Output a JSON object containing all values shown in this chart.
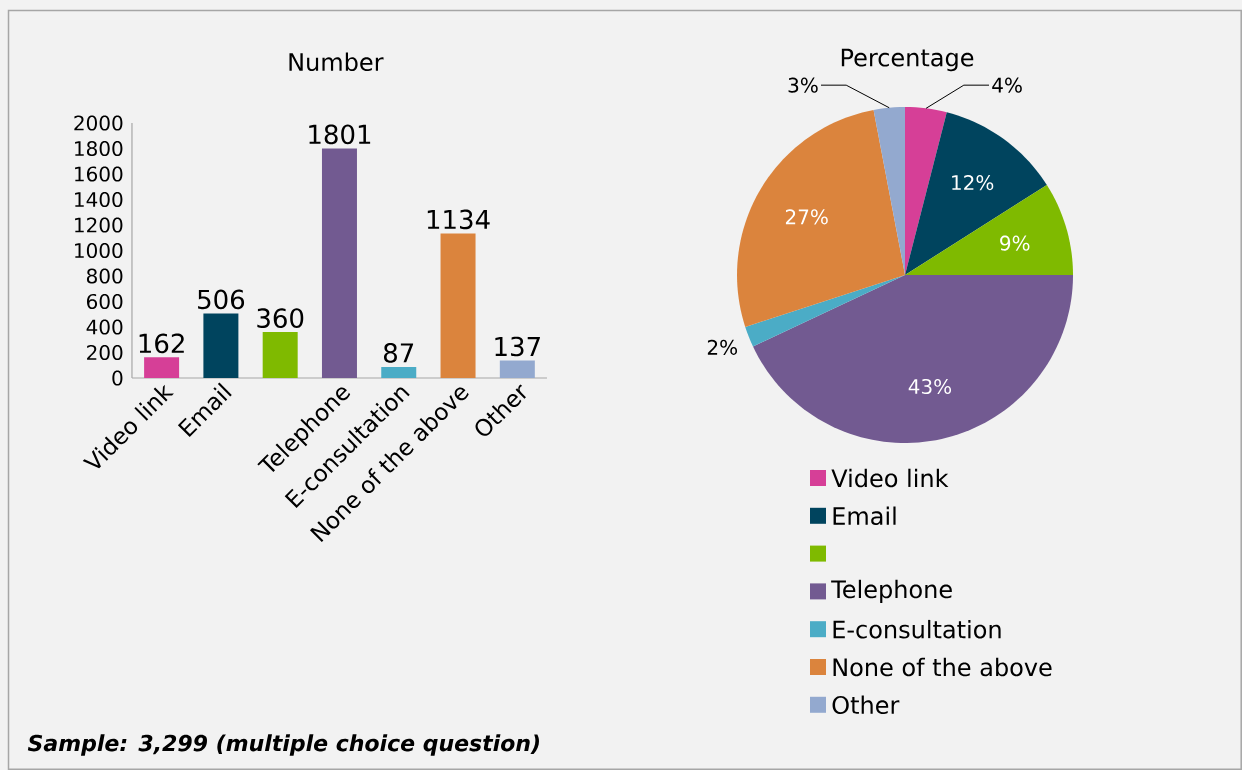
{
  "chart_data": [
    {
      "type": "bar",
      "title": "Number",
      "categories": [
        "Video link",
        "Email",
        null,
        "Telephone",
        "E-consultation",
        "None of the above",
        "Other"
      ],
      "values": [
        162,
        506,
        360,
        1801,
        87,
        1134,
        137
      ],
      "colors": [
        "#d63f97",
        "#00445e",
        "#7fba00",
        "#725a91",
        "#4bacc6",
        "#db843d",
        "#93a9cf"
      ],
      "ylim": [
        0,
        2000
      ],
      "yticks": [
        0,
        200,
        400,
        600,
        800,
        1000,
        1200,
        1400,
        1600,
        1800,
        2000
      ],
      "data_labels": true,
      "grid": false,
      "annotations": [
        "Sample: 3,299 (multiple choice question)"
      ]
    },
    {
      "type": "pie",
      "title": "Percentage",
      "categories": [
        "Video link",
        "Email",
        null,
        "Telephone",
        "E-consultation",
        "None of the above",
        "Other"
      ],
      "values": [
        4,
        12,
        9,
        43,
        2,
        27,
        3
      ],
      "value_labels": [
        "4%",
        "12%",
        "9%",
        "43%",
        "2%",
        "27%",
        "3%"
      ],
      "colors": [
        "#d63f97",
        "#00445e",
        "#7fba00",
        "#725a91",
        "#4bacc6",
        "#db843d",
        "#93a9cf"
      ],
      "legend": "bottom"
    }
  ]
}
